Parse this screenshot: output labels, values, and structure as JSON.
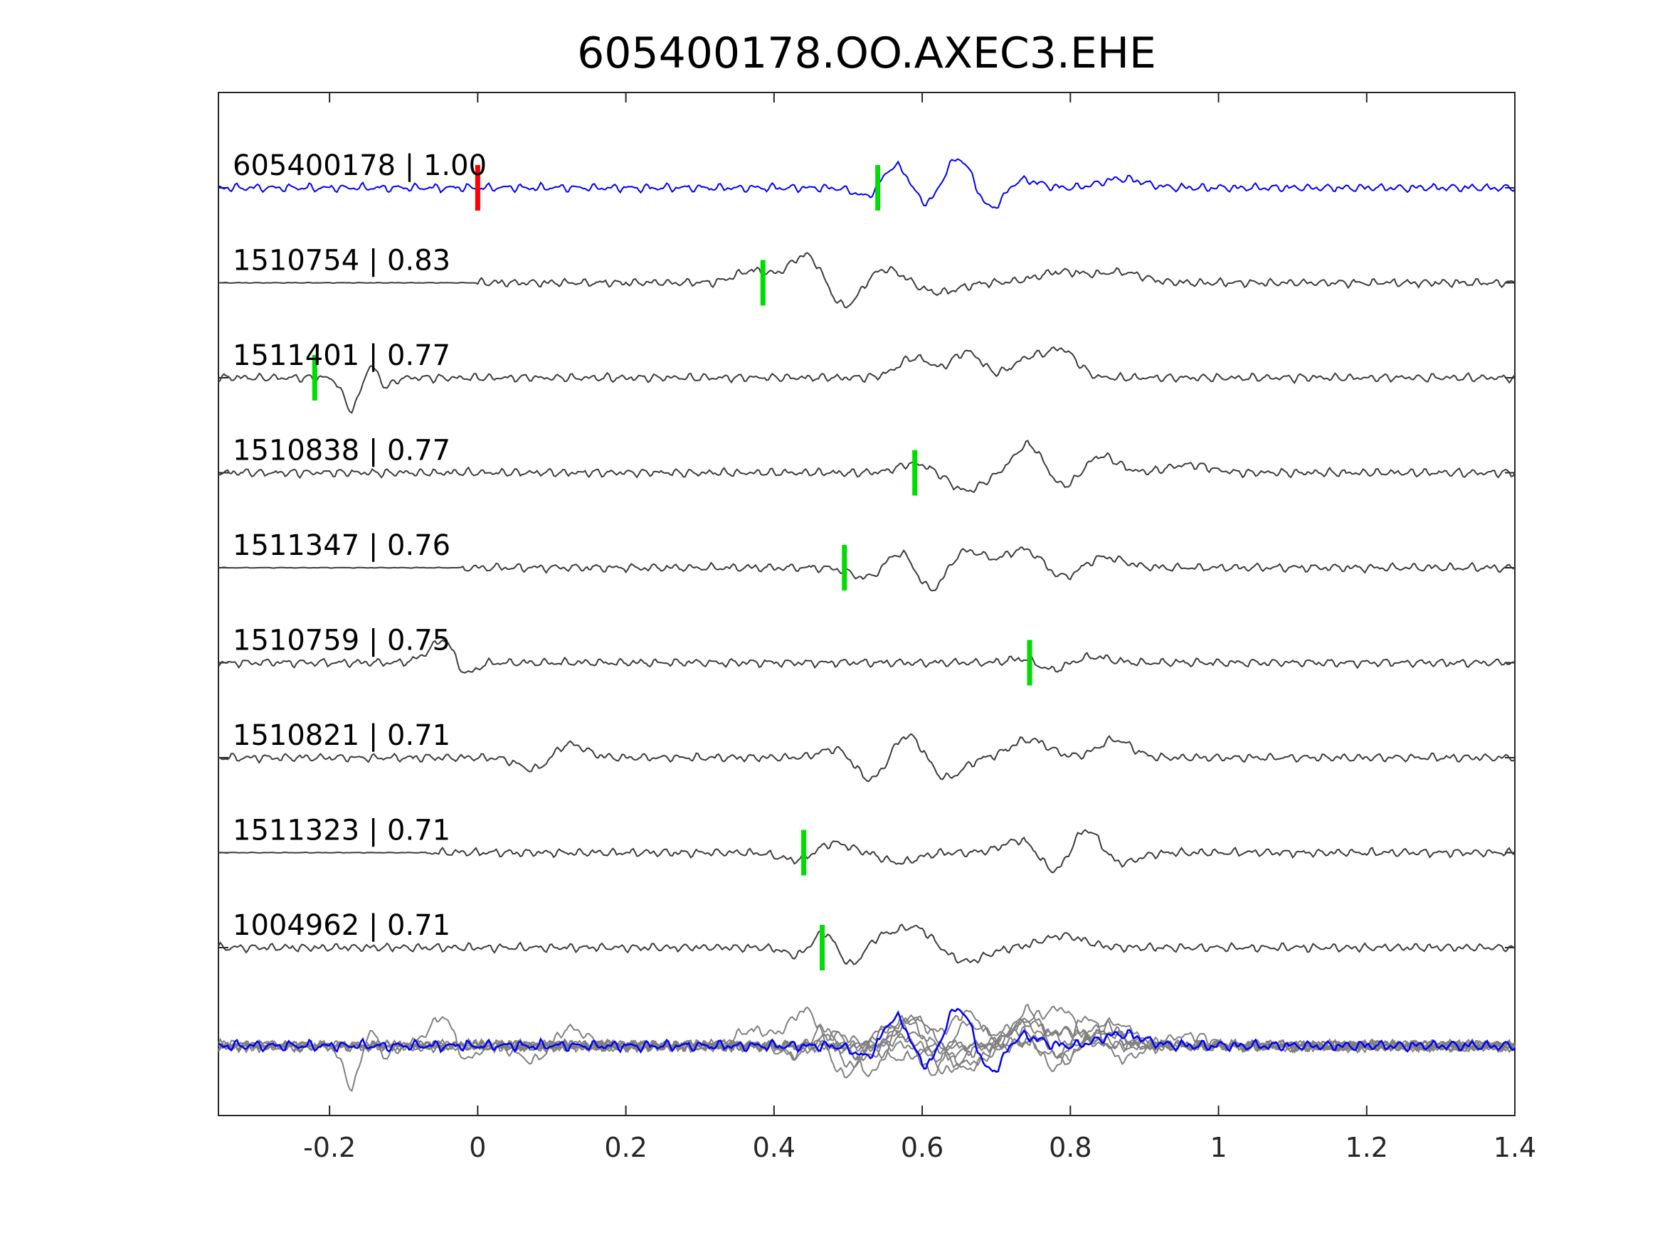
{
  "chart_data": {
    "type": "line",
    "title": "605400178.OO.AXEC3.EHE",
    "xlabel": "",
    "ylabel": "",
    "xlim": [
      -0.35,
      1.4
    ],
    "x_ticks": [
      -0.2,
      0,
      0.2,
      0.4,
      0.6,
      0.8,
      1,
      1.2,
      1.4
    ],
    "x_tick_labels": [
      "-0.2",
      "0",
      "0.2",
      "0.4",
      "0.6",
      "0.8",
      "1",
      "1.2",
      "1.4"
    ],
    "y_ticks_shown": false,
    "grid": false,
    "legend": "none",
    "colors": {
      "template": "#0000ff",
      "trace": "#3c3c3c",
      "stack": "#808080",
      "reference_pick": "#ff0000",
      "pick": "#00dd00",
      "axis": "#262626"
    },
    "reference_pick_time": 0.0,
    "series": [
      {
        "name": "605400178 | 1.00",
        "correlation": 1.0,
        "pick_time": 0.54,
        "role": "template",
        "onset": -0.35,
        "events": [
          [
            0.53,
            -0.7,
            0.03
          ],
          [
            0.565,
            1.3,
            0.04
          ],
          [
            0.605,
            -1.2,
            0.035
          ],
          [
            0.65,
            1.7,
            0.04
          ],
          [
            0.69,
            -1.4,
            0.035
          ],
          [
            0.73,
            0.5,
            0.04
          ],
          [
            0.87,
            0.45,
            0.05
          ]
        ]
      },
      {
        "name": "1510754 | 0.83",
        "correlation": 0.83,
        "pick_time": 0.385,
        "role": "trace",
        "onset": 0.0,
        "events": [
          [
            0.37,
            0.6,
            0.04
          ],
          [
            0.45,
            1.75,
            0.045
          ],
          [
            0.49,
            -1.7,
            0.045
          ],
          [
            0.545,
            0.8,
            0.05
          ],
          [
            0.62,
            -0.5,
            0.05
          ],
          [
            0.79,
            0.55,
            0.06
          ],
          [
            0.87,
            0.5,
            0.05
          ]
        ]
      },
      {
        "name": "1511401 | 0.77",
        "correlation": 0.77,
        "pick_time": -0.22,
        "role": "trace",
        "onset": -0.35,
        "events": [
          [
            -0.17,
            -1.6,
            0.02
          ],
          [
            -0.14,
            1.2,
            0.02
          ],
          [
            -0.13,
            -1.0,
            0.02
          ],
          [
            0.59,
            1.0,
            0.04
          ],
          [
            0.66,
            1.3,
            0.035
          ],
          [
            0.745,
            1.0,
            0.04
          ],
          [
            0.79,
            1.3,
            0.035
          ]
        ]
      },
      {
        "name": "1510838 | 0.77",
        "correlation": 0.77,
        "pick_time": 0.59,
        "role": "trace",
        "onset": -0.35,
        "events": [
          [
            0.59,
            0.45,
            0.04
          ],
          [
            0.66,
            -0.9,
            0.04
          ],
          [
            0.745,
            1.5,
            0.035
          ],
          [
            0.79,
            -0.8,
            0.04
          ],
          [
            0.84,
            0.9,
            0.04
          ],
          [
            0.96,
            0.4,
            0.05
          ]
        ]
      },
      {
        "name": "1511347 | 0.76",
        "correlation": 0.76,
        "pick_time": 0.495,
        "role": "trace",
        "onset": -0.02,
        "events": [
          [
            0.53,
            -0.6,
            0.04
          ],
          [
            0.575,
            1.2,
            0.04
          ],
          [
            0.61,
            -1.6,
            0.04
          ],
          [
            0.655,
            1.0,
            0.045
          ],
          [
            0.74,
            1.0,
            0.045
          ],
          [
            0.79,
            -0.7,
            0.045
          ],
          [
            0.84,
            0.6,
            0.05
          ]
        ]
      },
      {
        "name": "1510759 | 0.75",
        "correlation": 0.75,
        "pick_time": 0.745,
        "role": "trace",
        "onset": -0.35,
        "events": [
          [
            -0.06,
            0.5,
            0.03
          ],
          [
            -0.04,
            1.0,
            0.025
          ],
          [
            -0.02,
            -0.8,
            0.025
          ],
          [
            0.75,
            0.4,
            0.04
          ],
          [
            0.77,
            -0.6,
            0.035
          ],
          [
            0.83,
            0.3,
            0.04
          ]
        ]
      },
      {
        "name": "1510821 | 0.71",
        "correlation": 0.71,
        "pick_time": null,
        "role": "trace",
        "onset": -0.35,
        "events": [
          [
            0.08,
            -0.7,
            0.04
          ],
          [
            0.12,
            0.8,
            0.04
          ],
          [
            0.49,
            0.6,
            0.04
          ],
          [
            0.53,
            -1.3,
            0.04
          ],
          [
            0.58,
            1.3,
            0.04
          ],
          [
            0.63,
            -1.1,
            0.04
          ],
          [
            0.745,
            0.9,
            0.045
          ],
          [
            0.86,
            0.9,
            0.04
          ]
        ]
      },
      {
        "name": "1511323 | 0.71",
        "correlation": 0.71,
        "pick_time": 0.44,
        "role": "trace",
        "onset": -0.07,
        "events": [
          [
            0.43,
            -0.4,
            0.04
          ],
          [
            0.48,
            0.5,
            0.04
          ],
          [
            0.57,
            -0.5,
            0.04
          ],
          [
            0.74,
            0.8,
            0.045
          ],
          [
            0.78,
            -1.4,
            0.04
          ],
          [
            0.82,
            1.6,
            0.04
          ],
          [
            0.86,
            -0.7,
            0.045
          ]
        ]
      },
      {
        "name": "1004962 | 0.71",
        "correlation": 0.71,
        "pick_time": 0.465,
        "role": "trace",
        "onset": -0.35,
        "events": [
          [
            0.44,
            -0.6,
            0.035
          ],
          [
            0.47,
            1.3,
            0.035
          ],
          [
            0.5,
            -1.3,
            0.035
          ],
          [
            0.54,
            0.6,
            0.04
          ],
          [
            0.59,
            1.0,
            0.04
          ],
          [
            0.66,
            -0.7,
            0.045
          ],
          [
            0.79,
            0.6,
            0.05
          ]
        ]
      }
    ]
  }
}
